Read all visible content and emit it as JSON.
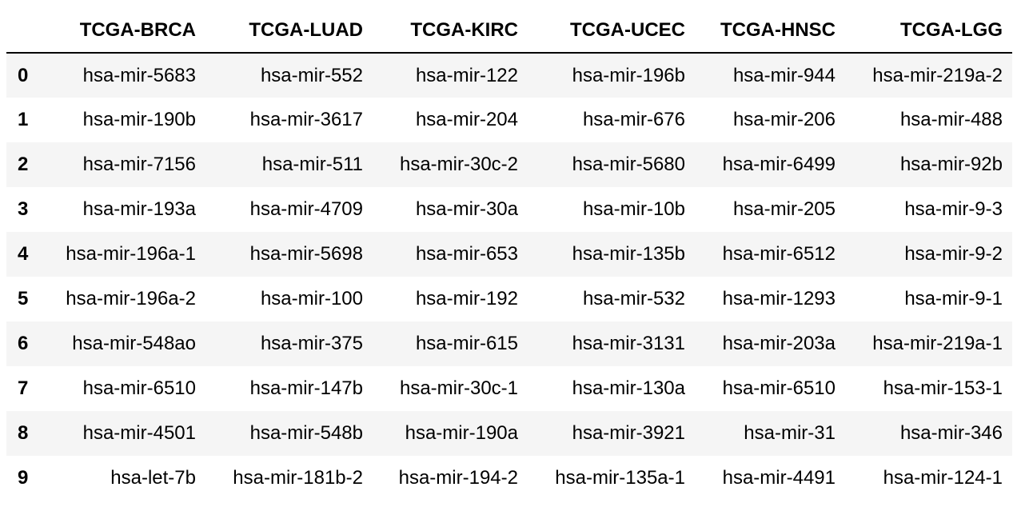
{
  "table": {
    "columns": [
      "TCGA-BRCA",
      "TCGA-LUAD",
      "TCGA-KIRC",
      "TCGA-UCEC",
      "TCGA-HNSC",
      "TCGA-LGG"
    ],
    "index": [
      "0",
      "1",
      "2",
      "3",
      "4",
      "5",
      "6",
      "7",
      "8",
      "9"
    ],
    "rows": [
      [
        "hsa-mir-5683",
        "hsa-mir-552",
        "hsa-mir-122",
        "hsa-mir-196b",
        "hsa-mir-944",
        "hsa-mir-219a-2"
      ],
      [
        "hsa-mir-190b",
        "hsa-mir-3617",
        "hsa-mir-204",
        "hsa-mir-676",
        "hsa-mir-206",
        "hsa-mir-488"
      ],
      [
        "hsa-mir-7156",
        "hsa-mir-511",
        "hsa-mir-30c-2",
        "hsa-mir-5680",
        "hsa-mir-6499",
        "hsa-mir-92b"
      ],
      [
        "hsa-mir-193a",
        "hsa-mir-4709",
        "hsa-mir-30a",
        "hsa-mir-10b",
        "hsa-mir-205",
        "hsa-mir-9-3"
      ],
      [
        "hsa-mir-196a-1",
        "hsa-mir-5698",
        "hsa-mir-653",
        "hsa-mir-135b",
        "hsa-mir-6512",
        "hsa-mir-9-2"
      ],
      [
        "hsa-mir-196a-2",
        "hsa-mir-100",
        "hsa-mir-192",
        "hsa-mir-532",
        "hsa-mir-1293",
        "hsa-mir-9-1"
      ],
      [
        "hsa-mir-548ao",
        "hsa-mir-375",
        "hsa-mir-615",
        "hsa-mir-3131",
        "hsa-mir-203a",
        "hsa-mir-219a-1"
      ],
      [
        "hsa-mir-6510",
        "hsa-mir-147b",
        "hsa-mir-30c-1",
        "hsa-mir-130a",
        "hsa-mir-6510",
        "hsa-mir-153-1"
      ],
      [
        "hsa-mir-4501",
        "hsa-mir-548b",
        "hsa-mir-190a",
        "hsa-mir-3921",
        "hsa-mir-31",
        "hsa-mir-346"
      ],
      [
        "hsa-let-7b",
        "hsa-mir-181b-2",
        "hsa-mir-194-2",
        "hsa-mir-135a-1",
        "hsa-mir-4491",
        "hsa-mir-124-1"
      ]
    ]
  },
  "colors": {
    "stripe": "#f5f5f5",
    "background": "#ffffff",
    "header_rule": "#000000"
  }
}
